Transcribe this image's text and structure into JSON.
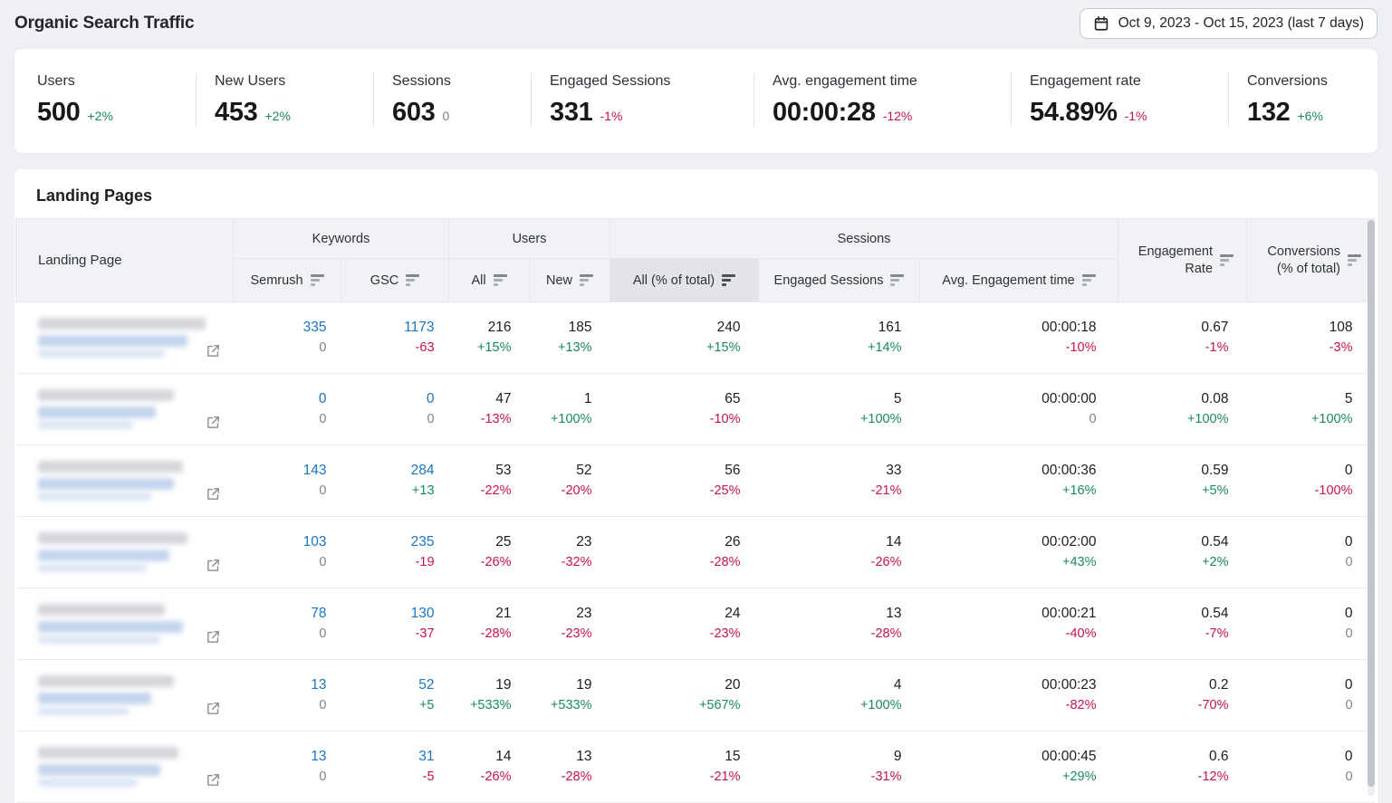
{
  "header": {
    "title": "Organic Search Traffic",
    "date_range": "Oct 9, 2023 - Oct 15, 2023 (last 7 days)"
  },
  "kpis": [
    {
      "label": "Users",
      "value": "500",
      "delta": "+2%"
    },
    {
      "label": "New Users",
      "value": "453",
      "delta": "+2%"
    },
    {
      "label": "Sessions",
      "value": "603",
      "delta": "0"
    },
    {
      "label": "Engaged Sessions",
      "value": "331",
      "delta": "-1%"
    },
    {
      "label": "Avg. engagement time",
      "value": "00:00:28",
      "delta": "-12%"
    },
    {
      "label": "Engagement rate",
      "value": "54.89%",
      "delta": "-1%"
    },
    {
      "label": "Conversions",
      "value": "132",
      "delta": "+6%"
    }
  ],
  "table": {
    "title": "Landing Pages",
    "landing_page_header": "Landing Page",
    "groups": {
      "keywords": "Keywords",
      "users": "Users",
      "sessions": "Sessions"
    },
    "columns": [
      {
        "label": "Semrush",
        "active": false
      },
      {
        "label": "GSC",
        "active": false
      },
      {
        "label": "All",
        "active": false
      },
      {
        "label": "New",
        "active": false
      },
      {
        "label": "All (% of total)",
        "active": true
      },
      {
        "label": "Engaged Sessions",
        "active": false
      },
      {
        "label": "Avg. Engagement time",
        "active": false
      }
    ],
    "rowspan_columns": [
      {
        "label": "Engagement\nRate"
      },
      {
        "label": "Conversions\n(% of total)"
      }
    ],
    "column_keys": [
      "kw-semrush",
      "kw-gsc",
      "users-all",
      "users-new",
      "sessions-all-pct",
      "sessions-engaged",
      "avg-engagement-time",
      "engagement-rate",
      "conversions"
    ],
    "rows": [
      {
        "cells": [
          [
            "335",
            "0"
          ],
          [
            "1173",
            "-63"
          ],
          [
            "216",
            "+15%"
          ],
          [
            "185",
            "+13%"
          ],
          [
            "240",
            "+15%"
          ],
          [
            "161",
            "+14%"
          ],
          [
            "00:00:18",
            "-10%"
          ],
          [
            "0.67",
            "-1%"
          ],
          [
            "108",
            "-3%"
          ]
        ]
      },
      {
        "cells": [
          [
            "0",
            "0"
          ],
          [
            "0",
            "0"
          ],
          [
            "47",
            "-13%"
          ],
          [
            "1",
            "+100%"
          ],
          [
            "65",
            "-10%"
          ],
          [
            "5",
            "+100%"
          ],
          [
            "00:00:00",
            "0"
          ],
          [
            "0.08",
            "+100%"
          ],
          [
            "5",
            "+100%"
          ]
        ]
      },
      {
        "cells": [
          [
            "143",
            "0"
          ],
          [
            "284",
            "+13"
          ],
          [
            "53",
            "-22%"
          ],
          [
            "52",
            "-20%"
          ],
          [
            "56",
            "-25%"
          ],
          [
            "33",
            "-21%"
          ],
          [
            "00:00:36",
            "+16%"
          ],
          [
            "0.59",
            "+5%"
          ],
          [
            "0",
            "-100%"
          ]
        ]
      },
      {
        "cells": [
          [
            "103",
            "0"
          ],
          [
            "235",
            "-19"
          ],
          [
            "25",
            "-26%"
          ],
          [
            "23",
            "-32%"
          ],
          [
            "26",
            "-28%"
          ],
          [
            "14",
            "-26%"
          ],
          [
            "00:02:00",
            "+43%"
          ],
          [
            "0.54",
            "+2%"
          ],
          [
            "0",
            "0"
          ]
        ]
      },
      {
        "cells": [
          [
            "78",
            "0"
          ],
          [
            "130",
            "-37"
          ],
          [
            "21",
            "-28%"
          ],
          [
            "23",
            "-23%"
          ],
          [
            "24",
            "-23%"
          ],
          [
            "13",
            "-28%"
          ],
          [
            "00:00:21",
            "-40%"
          ],
          [
            "0.54",
            "-7%"
          ],
          [
            "0",
            "0"
          ]
        ]
      },
      {
        "cells": [
          [
            "13",
            "0"
          ],
          [
            "52",
            "+5"
          ],
          [
            "19",
            "+533%"
          ],
          [
            "19",
            "+533%"
          ],
          [
            "20",
            "+567%"
          ],
          [
            "4",
            "+100%"
          ],
          [
            "00:00:23",
            "-82%"
          ],
          [
            "0.2",
            "-70%"
          ],
          [
            "0",
            "0"
          ]
        ]
      },
      {
        "cells": [
          [
            "13",
            "0"
          ],
          [
            "31",
            "-5"
          ],
          [
            "14",
            "-26%"
          ],
          [
            "13",
            "-28%"
          ],
          [
            "15",
            "-21%"
          ],
          [
            "9",
            "-31%"
          ],
          [
            "00:00:45",
            "+29%"
          ],
          [
            "0.6",
            "-12%"
          ],
          [
            "0",
            "0"
          ]
        ]
      }
    ]
  },
  "colors": {
    "positive": "#188a5f",
    "negative": "#c51450",
    "neutral_zero": "#7d838c",
    "link_blue": "#1a76c2",
    "header_active_bg": "#e2e4ea",
    "page_bg": "#eef0f3"
  }
}
